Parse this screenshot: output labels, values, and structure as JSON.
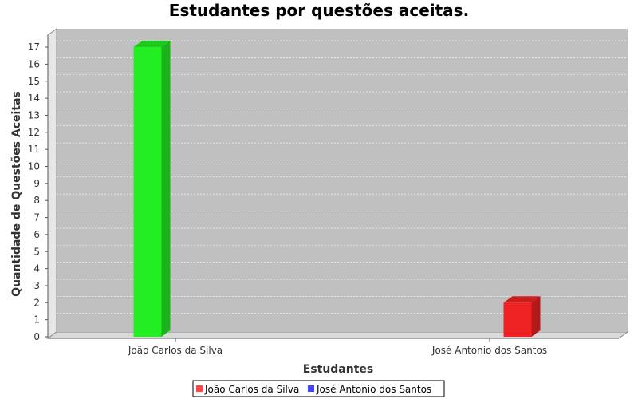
{
  "chart_data": {
    "type": "bar",
    "title": "Estudantes por questões aceitas.",
    "xlabel": "Estudantes",
    "ylabel": "Quantidade de Questões Aceitas",
    "categories": [
      "João Carlos da Silva",
      "José  Antonio dos Santos"
    ],
    "series": [
      {
        "name": "João Carlos da Silva",
        "values": [
          17,
          0
        ],
        "color": "#22ee22",
        "legend_color": "#ff4444"
      },
      {
        "name": "José  Antonio dos Santos",
        "values": [
          0,
          2
        ],
        "color": "#ee2222",
        "legend_color": "#4444ff"
      }
    ],
    "ylim": [
      0,
      17
    ],
    "yticks": [
      0,
      1,
      2,
      3,
      4,
      5,
      6,
      7,
      8,
      9,
      10,
      11,
      12,
      13,
      14,
      15,
      16,
      17
    ],
    "grid": true,
    "legend_position": "bottom",
    "three_d": true
  }
}
